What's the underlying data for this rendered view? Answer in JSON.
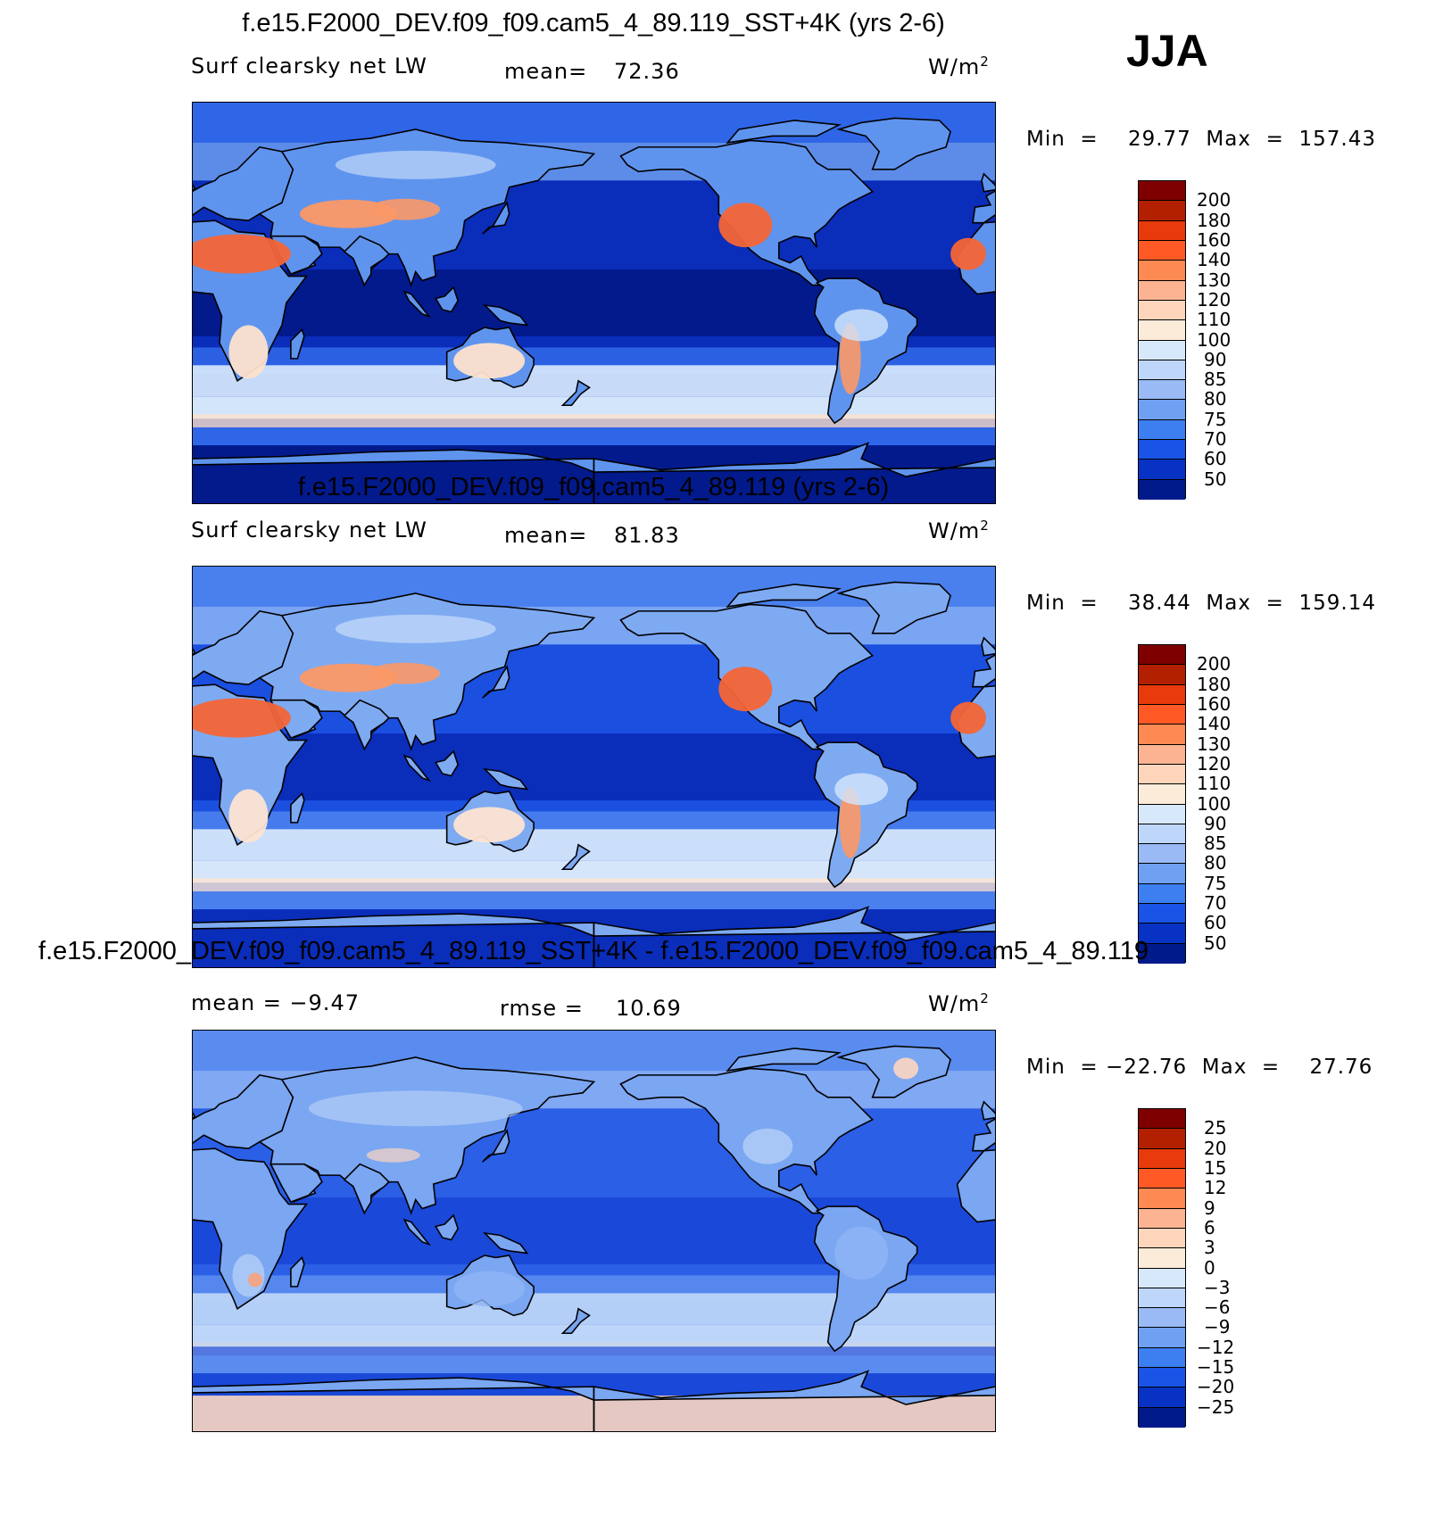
{
  "season": "JJA",
  "panels": [
    {
      "title": "f.e15.F2000_DEV.f09_f09.cam5_4_89.119_SST+4K (yrs 2-6)",
      "left_label": "Surf  clearsky  net  LW",
      "stat_label": "mean=",
      "stat_value": "72.36",
      "unit": "W/m",
      "unit_sup": "2",
      "min_max": "Min  =    29.77  Max  =  157.43",
      "colorbar": {
        "levels": [
          "200",
          "180",
          "160",
          "140",
          "130",
          "120",
          "110",
          "100",
          "90",
          "85",
          "80",
          "75",
          "70",
          "60",
          "50"
        ],
        "colors": [
          "#7f0000",
          "#b22000",
          "#e83a0a",
          "#ff5a26",
          "#fc8a52",
          "#fcb392",
          "#fdd5bb",
          "#fdebd9",
          "#d7e8fb",
          "#bdd6fa",
          "#99baf5",
          "#6fa0f2",
          "#3d7ef0",
          "#1a54e6",
          "#0732c4",
          "#001a8c"
        ]
      },
      "map_kind": "base",
      "map_colors": {
        "ocean": "#0a2dba",
        "deep": "#031a8c",
        "mid": "#2f66e8",
        "cold": "#6b9ef0",
        "pale": "#d2e5fb",
        "warm": "#fde1cc",
        "hot": "#fc9866",
        "hotter": "#f46536",
        "land": "#5f94ee"
      }
    },
    {
      "title": "f.e15.F2000_DEV.f09_f09.cam5_4_89.119 (yrs 2-6)",
      "left_label": "Surf  clearsky  net  LW",
      "stat_label": "mean=",
      "stat_value": "81.83",
      "unit": "W/m",
      "unit_sup": "2",
      "min_max": "Min  =    38.44  Max  =  159.14",
      "colorbar": {
        "levels": [
          "200",
          "180",
          "160",
          "140",
          "130",
          "120",
          "110",
          "100",
          "90",
          "85",
          "80",
          "75",
          "70",
          "60",
          "50"
        ],
        "colors": [
          "#7f0000",
          "#b22000",
          "#e83a0a",
          "#ff5a26",
          "#fc8a52",
          "#fcb392",
          "#fdd5bb",
          "#fdebd9",
          "#d7e8fb",
          "#bdd6fa",
          "#99baf5",
          "#6fa0f2",
          "#3d7ef0",
          "#1a54e6",
          "#0732c4",
          "#001a8c"
        ]
      },
      "map_kind": "base",
      "map_colors": {
        "ocean": "#1a4fe0",
        "deep": "#0a2dba",
        "mid": "#4a80ee",
        "cold": "#8cb4f4",
        "pale": "#d5e6fb",
        "warm": "#fde4d2",
        "hot": "#fc9866",
        "hotter": "#f46536",
        "land": "#7eaaf2"
      }
    },
    {
      "title": "f.e15.F2000_DEV.f09_f09.cam5_4_89.119_SST+4K - f.e15.F2000_DEV.f09_f09.cam5_4_89.119",
      "left_label": "mean  =    −9.47",
      "stat_label": "rmse  =",
      "stat_value": "10.69",
      "unit": "W/m",
      "unit_sup": "2",
      "min_max": "Min  = −22.76  Max  =    27.76",
      "colorbar": {
        "levels": [
          "25",
          "20",
          "15",
          "12",
          "9",
          "6",
          "3",
          "0",
          "−3",
          "−6",
          "−9",
          "−12",
          "−15",
          "−20",
          "−25"
        ],
        "colors": [
          "#7f0000",
          "#b22000",
          "#e83a0a",
          "#ff5a26",
          "#fc8a52",
          "#fcb392",
          "#fdd5bb",
          "#fdebd9",
          "#d7e8fb",
          "#bdd6fa",
          "#99baf5",
          "#6fa0f2",
          "#3d7ef0",
          "#1a54e6",
          "#0732c4",
          "#001a8c"
        ]
      },
      "map_kind": "diff",
      "map_colors": {
        "ocean": "#2a5fe6",
        "deep": "#1a48d8",
        "mid": "#5a8cf0",
        "cold": "#8fb5f5",
        "pale": "#bcd5f8",
        "warm": "#fcd6c0",
        "hot": "#f7a27c",
        "hotter": "#e8532a",
        "land": "#7aa6f2"
      }
    }
  ]
}
